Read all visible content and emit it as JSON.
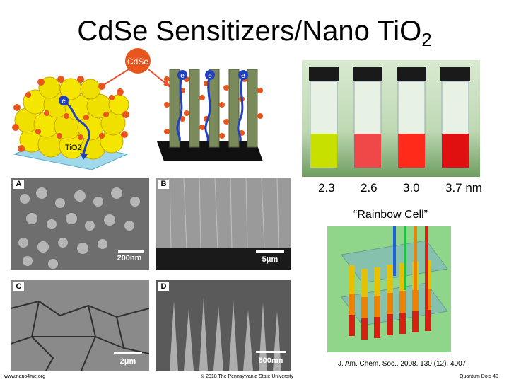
{
  "slide": {
    "title_main": "CdSe Sensitizers/Nano TiO",
    "title_sub": "2",
    "diagram": {
      "cdse_label": "CdSe",
      "tio2_label": "TiO2",
      "electron_label": "e"
    },
    "vial_sizes": [
      "2.3",
      "2.6",
      "3.0",
      "3.7 nm"
    ],
    "rainbow_caption": "“Rainbow Cell”",
    "sem_panels": [
      {
        "label": "A",
        "scale": "200nm"
      },
      {
        "label": "B",
        "scale": "5μm"
      },
      {
        "label": "C",
        "scale": "2μm"
      },
      {
        "label": "D",
        "scale": "500nm"
      }
    ],
    "citation": "J. Am. Chem. Soc., 2008, 130 (12), 4007.",
    "footer": {
      "left": "www.nano4me.org",
      "center": "© 2018 The Pennsylvania State University",
      "right": "Quantum Dots 40"
    },
    "colors": {
      "cdse_dot": "#e8561e",
      "tio2_particle": "#f5e600",
      "electron_path": "#2040c0",
      "arrow": "#e85030",
      "vial_1": "#c8e000",
      "vial_2": "#f04848",
      "vial_3": "#ff2a1a",
      "vial_4": "#e01010"
    }
  }
}
